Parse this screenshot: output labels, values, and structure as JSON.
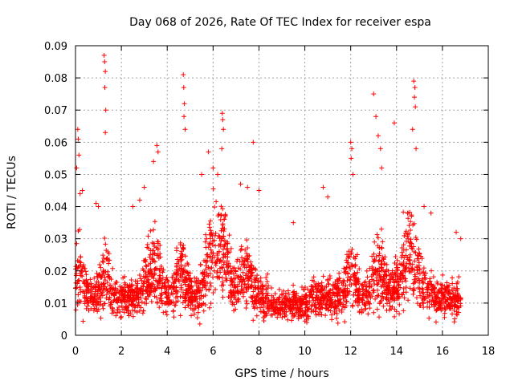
{
  "chart_data": {
    "type": "scatter",
    "title": "Day 068 of 2026, Rate Of TEC Index for receiver espa",
    "xlabel": "GPS time / hours",
    "ylabel": "ROTI / TECUs",
    "xlim": [
      0,
      18
    ],
    "ylim": [
      0,
      0.09
    ],
    "x_ticks": [
      0,
      2,
      4,
      6,
      8,
      10,
      12,
      14,
      16,
      18
    ],
    "x_tick_labels": [
      "0",
      "2",
      "4",
      "6",
      "8",
      "10",
      "12",
      "14",
      "16",
      "18"
    ],
    "y_ticks": [
      0,
      0.01,
      0.02,
      0.03,
      0.04,
      0.05,
      0.06,
      0.07,
      0.08,
      0.09
    ],
    "y_tick_labels": [
      "0",
      "0.01",
      "0.02",
      "0.03",
      "0.04",
      "0.05",
      "0.06",
      "0.07",
      "0.08",
      "0.09"
    ],
    "grid": true,
    "marker": "+",
    "color": "#ff0000",
    "data_time_range": [
      0.0,
      16.8
    ],
    "series": [
      {
        "name": "ROTI",
        "x": [
          0.1,
          0.12,
          0.15,
          0.2,
          1.25,
          1.27,
          1.3,
          1.28,
          1.32,
          1.3,
          4.7,
          4.72,
          4.75,
          4.73,
          4.78,
          6.4,
          6.42,
          6.45,
          6.38,
          7.75,
          3.55,
          3.6,
          3.4,
          12.0,
          12.05,
          12.02,
          12.1,
          13.0,
          13.1,
          13.2,
          13.3,
          13.35,
          13.9,
          14.75,
          14.8,
          14.78,
          14.82,
          14.7,
          14.85,
          0.05,
          0.3,
          0.9,
          1.0,
          5.5,
          5.8,
          6.0,
          6.2,
          7.2,
          7.5,
          8.0,
          10.8,
          11.0,
          2.5,
          3.0,
          2.8,
          9.5,
          15.2,
          15.5,
          16.6,
          16.8
        ],
        "y": [
          0.064,
          0.061,
          0.056,
          0.044,
          0.087,
          0.085,
          0.082,
          0.077,
          0.07,
          0.063,
          0.081,
          0.077,
          0.072,
          0.068,
          0.064,
          0.069,
          0.067,
          0.064,
          0.058,
          0.06,
          0.059,
          0.057,
          0.054,
          0.06,
          0.058,
          0.055,
          0.05,
          0.075,
          0.068,
          0.062,
          0.058,
          0.052,
          0.066,
          0.079,
          0.077,
          0.074,
          0.071,
          0.064,
          0.058,
          0.052,
          0.045,
          0.041,
          0.04,
          0.05,
          0.057,
          0.052,
          0.05,
          0.047,
          0.046,
          0.045,
          0.046,
          0.043,
          0.04,
          0.046,
          0.042,
          0.035,
          0.04,
          0.038,
          0.032,
          0.03
        ]
      }
    ]
  }
}
